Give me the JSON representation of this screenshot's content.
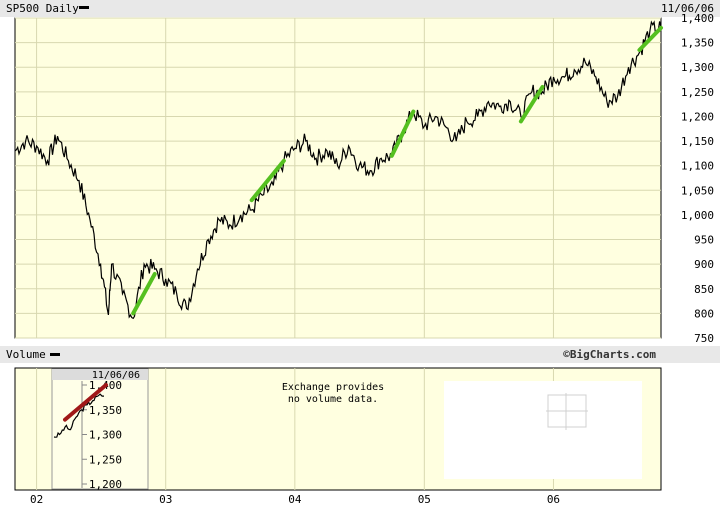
{
  "header": {
    "symbol_label": "SP500 Daily",
    "date": "11/06/06"
  },
  "volume_panel": {
    "label": "Volume",
    "message_line1": "Exchange provides",
    "message_line2": "no volume data.",
    "watermark": "©BigCharts.com"
  },
  "colors": {
    "plot_bg": "#ffffe0",
    "header_bg": "#e8e8e8",
    "grid": "#d8d8b0",
    "price_line": "#000000",
    "trend_up": "#55c020",
    "trend_down": "#a01818"
  },
  "chart_data": [
    {
      "type": "line",
      "title": "SP500 Daily",
      "y_ticks": [
        750,
        800,
        850,
        900,
        950,
        1000,
        1050,
        1100,
        1150,
        1200,
        1250,
        1300,
        1350,
        1400
      ],
      "ylim": [
        750,
        1400
      ],
      "x_ticks": [
        "02",
        "03",
        "04",
        "05",
        "06"
      ],
      "xlim": [
        "2001-11",
        "2006-11"
      ],
      "grid": true,
      "series": [
        {
          "values": [
            [
              "2001-11",
              1130
            ],
            [
              "2001-12",
              1150
            ],
            [
              "2002-01",
              1140
            ],
            [
              "2002-02",
              1110
            ],
            [
              "2002-03",
              1160
            ],
            [
              "2002-04",
              1110
            ],
            [
              "2002-05",
              1070
            ],
            [
              "2002-06",
              990
            ],
            [
              "2002-07",
              900
            ],
            [
              "2002-07-23",
              797
            ],
            [
              "2002-08",
              900
            ],
            [
              "2002-09",
              840
            ],
            [
              "2002-10",
              790
            ],
            [
              "2002-11",
              900
            ],
            [
              "2002-12",
              890
            ],
            [
              "2003-01",
              870
            ],
            [
              "2003-02",
              840
            ],
            [
              "2003-03",
              810
            ],
            [
              "2003-04",
              890
            ],
            [
              "2003-05",
              950
            ],
            [
              "2003-06",
              990
            ],
            [
              "2003-07",
              980
            ],
            [
              "2003-08",
              1000
            ],
            [
              "2003-09",
              1010
            ],
            [
              "2003-10",
              1040
            ],
            [
              "2003-11",
              1060
            ],
            [
              "2003-12",
              1110
            ],
            [
              "2004-01",
              1135
            ],
            [
              "2004-02",
              1150
            ],
            [
              "2004-03",
              1115
            ],
            [
              "2004-04",
              1130
            ],
            [
              "2004-05",
              1100
            ],
            [
              "2004-06",
              1140
            ],
            [
              "2004-07",
              1100
            ],
            [
              "2004-08",
              1090
            ],
            [
              "2004-09",
              1115
            ],
            [
              "2004-10",
              1120
            ],
            [
              "2004-11",
              1170
            ],
            [
              "2004-12",
              1210
            ],
            [
              "2005-01",
              1180
            ],
            [
              "2005-02",
              1200
            ],
            [
              "2005-03",
              1180
            ],
            [
              "2005-04",
              1150
            ],
            [
              "2005-05",
              1190
            ],
            [
              "2005-06",
              1200
            ],
            [
              "2005-07",
              1230
            ],
            [
              "2005-08",
              1220
            ],
            [
              "2005-09",
              1230
            ],
            [
              "2005-10",
              1200
            ],
            [
              "2005-11",
              1250
            ],
            [
              "2005-12",
              1250
            ],
            [
              "2006-01",
              1280
            ],
            [
              "2006-02",
              1280
            ],
            [
              "2006-03",
              1295
            ],
            [
              "2006-04",
              1310
            ],
            [
              "2006-05",
              1280
            ],
            [
              "2006-06",
              1230
            ],
            [
              "2006-07",
              1240
            ],
            [
              "2006-08",
              1300
            ],
            [
              "2006-09",
              1330
            ],
            [
              "2006-10",
              1375
            ],
            [
              "2006-11",
              1380
            ]
          ]
        }
      ],
      "trendlines_up": [
        [
          [
            "2002-10",
            800
          ],
          [
            "2002-12",
            880
          ]
        ],
        [
          [
            "2003-09",
            1030
          ],
          [
            "2003-12",
            1110
          ]
        ],
        [
          [
            "2004-10",
            1120
          ],
          [
            "2004-12",
            1210
          ]
        ],
        [
          [
            "2005-10",
            1190
          ],
          [
            "2005-12",
            1260
          ]
        ],
        [
          [
            "2006-09",
            1335
          ],
          [
            "2006-11",
            1380
          ]
        ]
      ]
    },
    {
      "type": "line",
      "y_ticks": [
        1200,
        1250,
        1300,
        1350,
        1400
      ],
      "ylim": [
        1200,
        1400
      ],
      "grid": true,
      "series": [
        {
          "values": [
            [
              "2006-09-01",
              1295
            ],
            [
              "2006-09-08",
              1300
            ],
            [
              "2006-09-15",
              1315
            ],
            [
              "2006-09-22",
              1310
            ],
            [
              "2006-09-29",
              1335
            ],
            [
              "2006-10-06",
              1350
            ],
            [
              "2006-10-13",
              1360
            ],
            [
              "2006-10-20",
              1368
            ],
            [
              "2006-10-27",
              1378
            ],
            [
              "2006-11-06",
              1380
            ]
          ]
        }
      ],
      "trendline_down": [
        [
          "2006-09-15",
          1330
        ],
        [
          "2006-11-06",
          1400
        ]
      ]
    }
  ]
}
